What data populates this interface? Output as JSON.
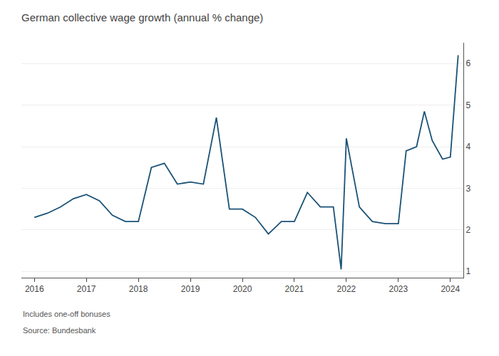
{
  "chart_data": {
    "type": "line",
    "title": "German collective wage growth (annual % change)",
    "annotations": [
      "Includes one-off bonuses",
      "Source: Bundesbank"
    ],
    "x": [
      2016.0,
      2016.25,
      2016.5,
      2016.75,
      2017.0,
      2017.25,
      2017.5,
      2017.75,
      2018.0,
      2018.25,
      2018.5,
      2018.75,
      2019.0,
      2019.25,
      2019.5,
      2019.75,
      2020.0,
      2020.25,
      2020.5,
      2020.75,
      2021.0,
      2021.25,
      2021.5,
      2021.75,
      2021.9,
      2022.0,
      2022.25,
      2022.5,
      2022.75,
      2023.0,
      2023.15,
      2023.35,
      2023.5,
      2023.65,
      2023.85,
      2024.0,
      2024.15
    ],
    "values": [
      2.3,
      2.4,
      2.55,
      2.75,
      2.85,
      2.7,
      2.35,
      2.2,
      2.2,
      3.5,
      3.6,
      3.1,
      3.15,
      3.1,
      4.7,
      2.5,
      2.5,
      2.3,
      1.9,
      2.2,
      2.2,
      2.9,
      2.55,
      2.55,
      1.05,
      4.2,
      2.55,
      2.2,
      2.15,
      2.15,
      3.9,
      4.0,
      4.85,
      4.15,
      3.7,
      3.75,
      6.2
    ],
    "color": "#1a5276",
    "xlim": [
      2015.75,
      2024.25
    ],
    "xticks": [
      2016,
      2017,
      2018,
      2019,
      2020,
      2021,
      2022,
      2023,
      2024
    ],
    "ylim": [
      0.85,
      6.5
    ],
    "yticks": [
      1,
      2,
      3,
      4,
      5,
      6
    ],
    "grid": "y"
  }
}
